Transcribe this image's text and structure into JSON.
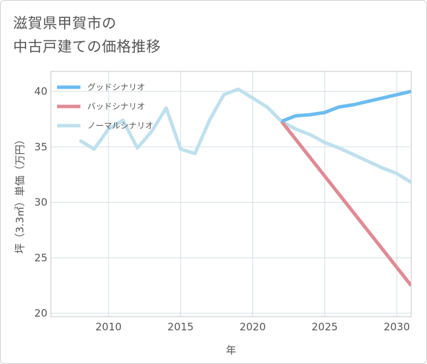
{
  "title": {
    "line1": "滋賀県甲賀市の",
    "line2": "中古戸建ての価格推移"
  },
  "chart_data": {
    "type": "line",
    "xlabel": "年",
    "ylabel": "坪（3.3㎡）単価（万円）",
    "xlim": [
      2006,
      2031
    ],
    "ylim": [
      19.7,
      41.8
    ],
    "x_ticks": [
      2010,
      2015,
      2020,
      2025,
      2030
    ],
    "y_ticks": [
      20,
      25,
      30,
      35,
      40
    ],
    "grid": true,
    "legend_position": "top-left",
    "series": [
      {
        "name": "グッドシナリオ",
        "color": "#6bbcf0",
        "x": [
          2022,
          2023,
          2024,
          2025,
          2026,
          2027,
          2028,
          2029,
          2030,
          2031
        ],
        "y": [
          37.3,
          37.8,
          37.9,
          38.1,
          38.6,
          38.8,
          39.1,
          39.4,
          39.7,
          40.0
        ]
      },
      {
        "name": "バッドシナリオ",
        "color": "#e08a95",
        "x": [
          2022,
          2031
        ],
        "y": [
          37.3,
          22.5
        ]
      },
      {
        "name": "ノーマルシナリオ",
        "color": "#bfe0ec",
        "x": [
          2008,
          2009,
          2010,
          2011,
          2012,
          2013,
          2014,
          2015,
          2016,
          2017,
          2018,
          2019,
          2020,
          2021,
          2022,
          2023,
          2024,
          2025,
          2026,
          2027,
          2028,
          2029,
          2030,
          2031
        ],
        "y": [
          35.6,
          34.8,
          36.6,
          37.4,
          34.9,
          36.4,
          38.5,
          34.8,
          34.4,
          37.4,
          39.7,
          40.2,
          39.4,
          38.6,
          37.3,
          36.6,
          36.1,
          35.4,
          34.9,
          34.3,
          33.7,
          33.1,
          32.6,
          31.8
        ]
      }
    ]
  }
}
